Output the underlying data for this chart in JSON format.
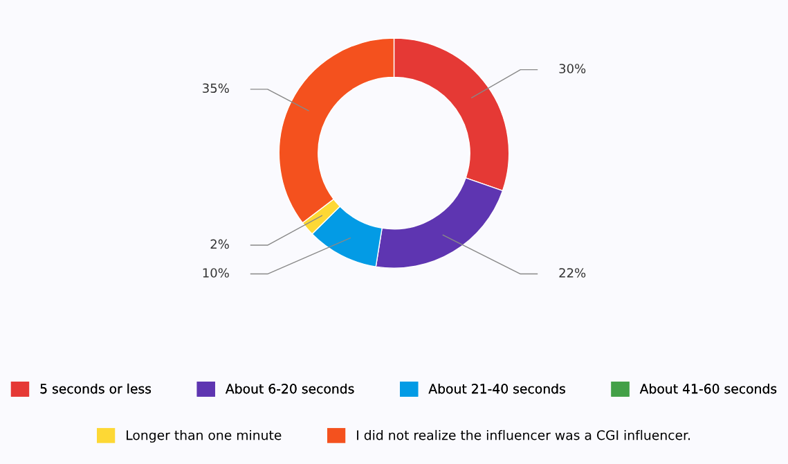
{
  "chart_data": {
    "type": "donut",
    "categories": [
      "5 seconds or less",
      "About 6-20 seconds",
      "About 21-40 seconds",
      "About 41-60 seconds",
      "Longer than one minute",
      "I did not realize the influencer was a CGI influencer."
    ],
    "values": [
      30,
      22,
      10,
      0,
      2,
      35
    ],
    "value_labels": [
      "30%",
      "22%",
      "10%",
      null,
      "2%",
      "35%"
    ],
    "colors": [
      "#e53935",
      "#5e35b1",
      "#039be5",
      "#43a047",
      "#fdd835",
      "#f4511e"
    ],
    "legend": "bottom"
  }
}
